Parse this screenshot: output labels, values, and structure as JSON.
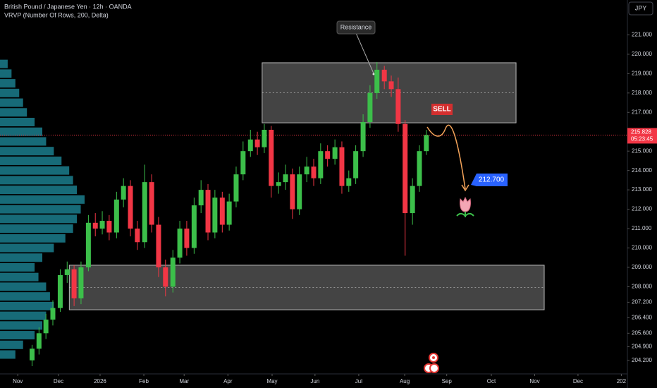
{
  "chart_data": {
    "type": "candlestick",
    "title": "British Pound / Japanese Yen · 12h · OANDA",
    "subtitle": "VRVP (Number Of Rows, 200, Delta)",
    "currency_button": "JPY",
    "up_color": "#3cbf4a",
    "down_color": "#f23645",
    "x": [
      0.33,
      0.49,
      0.65,
      0.81,
      0.98,
      1.14,
      1.3,
      1.46,
      1.63,
      1.79,
      1.95,
      2.11,
      2.28,
      2.44,
      2.6,
      2.76,
      2.93,
      3.09,
      3.25,
      3.41,
      3.58,
      3.74,
      3.9,
      4.07,
      4.23,
      4.39,
      4.55,
      4.72,
      4.88,
      5.04,
      5.2,
      5.37,
      5.53,
      5.69,
      5.85,
      6.02,
      6.18,
      6.34,
      6.5,
      6.67,
      6.83,
      6.99,
      7.15,
      7.32,
      7.48,
      7.64,
      7.8,
      7.97,
      8.13,
      8.29,
      8.46,
      8.62,
      8.78,
      8.94,
      9.11,
      9.27,
      9.43
    ],
    "open": [
      204.2,
      204.8,
      205.6,
      206.3,
      206.9,
      208.6,
      208.9,
      207.4,
      209.0,
      211.3,
      211.0,
      211.4,
      210.8,
      212.5,
      213.2,
      211.0,
      210.3,
      213.4,
      211.2,
      209.0,
      208.0,
      209.5,
      211.0,
      210.0,
      212.2,
      213.0,
      210.8,
      212.6,
      211.2,
      212.4,
      213.8,
      215.0,
      215.6,
      215.2,
      216.1,
      213.2,
      213.4,
      213.8,
      212.0,
      213.8,
      214.2,
      213.6,
      215.0,
      214.6,
      215.2,
      213.2,
      213.6,
      215.0,
      216.5,
      218.0,
      219.2,
      218.6,
      218.2,
      216.4,
      211.8,
      213.2,
      215.0
    ],
    "high": [
      205.0,
      205.9,
      206.6,
      207.3,
      208.9,
      209.3,
      209.1,
      209.3,
      211.7,
      211.8,
      211.9,
      211.7,
      212.9,
      213.6,
      213.5,
      211.4,
      214.3,
      213.8,
      211.6,
      209.4,
      209.9,
      211.4,
      211.4,
      212.6,
      213.5,
      213.3,
      213.0,
      212.9,
      212.8,
      214.2,
      215.5,
      216.1,
      216.0,
      216.4,
      216.3,
      213.9,
      214.3,
      214.1,
      214.2,
      214.7,
      214.6,
      215.4,
      215.3,
      215.6,
      215.5,
      214.0,
      215.3,
      216.9,
      218.4,
      219.6,
      219.4,
      218.9,
      218.8,
      216.6,
      213.6,
      215.3,
      216.1
    ],
    "low": [
      203.9,
      204.5,
      205.3,
      206.0,
      206.7,
      208.2,
      207.0,
      207.1,
      208.8,
      210.6,
      210.7,
      210.4,
      210.5,
      212.1,
      210.6,
      209.9,
      210.0,
      210.8,
      208.5,
      207.5,
      207.7,
      209.2,
      209.6,
      209.7,
      211.8,
      210.4,
      210.5,
      210.8,
      210.9,
      212.1,
      213.5,
      214.7,
      214.8,
      214.9,
      212.6,
      212.8,
      213.0,
      211.5,
      211.7,
      213.4,
      213.2,
      213.3,
      214.2,
      214.3,
      212.8,
      212.9,
      213.3,
      214.7,
      216.2,
      217.7,
      218.2,
      217.8,
      216.0,
      209.6,
      211.2,
      212.9,
      214.8
    ],
    "close": [
      204.8,
      205.6,
      206.3,
      206.9,
      208.6,
      208.9,
      207.4,
      209.0,
      211.3,
      211.0,
      211.4,
      210.8,
      212.5,
      213.2,
      211.0,
      210.3,
      213.4,
      211.2,
      209.0,
      208.0,
      209.5,
      211.0,
      210.0,
      212.2,
      213.0,
      210.8,
      212.6,
      211.2,
      212.4,
      213.8,
      215.0,
      215.6,
      215.2,
      216.1,
      213.2,
      213.4,
      213.8,
      212.0,
      213.8,
      214.2,
      213.6,
      215.0,
      214.6,
      215.2,
      213.2,
      213.6,
      215.0,
      216.5,
      218.0,
      219.2,
      218.6,
      218.2,
      216.4,
      211.8,
      213.2,
      215.0,
      215.828
    ],
    "xlim": [
      -0.41,
      14.07
    ],
    "xticks": [
      {
        "value": 0,
        "label": "Nov"
      },
      {
        "value": 0.94,
        "label": "Dec"
      },
      {
        "value": 1.9,
        "label": "2026"
      },
      {
        "value": 2.91,
        "label": "Feb"
      },
      {
        "value": 3.84,
        "label": "Mar"
      },
      {
        "value": 4.85,
        "label": "Apr"
      },
      {
        "value": 5.87,
        "label": "May"
      },
      {
        "value": 6.86,
        "label": "Jun"
      },
      {
        "value": 7.87,
        "label": "Jul"
      },
      {
        "value": 8.93,
        "label": "Aug"
      },
      {
        "value": 9.9,
        "label": "Sep"
      },
      {
        "value": 10.93,
        "label": "Oct"
      },
      {
        "value": 11.93,
        "label": "Nov"
      },
      {
        "value": 12.93,
        "label": "Dec"
      },
      {
        "value": 13.93,
        "label": "202"
      }
    ],
    "ylim": [
      203.5,
      222.8
    ],
    "yticks": [
      {
        "value": 221,
        "label": "221.000"
      },
      {
        "value": 220,
        "label": "220.000"
      },
      {
        "value": 219,
        "label": "219.000"
      },
      {
        "value": 218,
        "label": "218.000"
      },
      {
        "value": 217,
        "label": "217.000"
      },
      {
        "value": 216,
        "label": "216.000"
      },
      {
        "value": 215,
        "label": "215.000"
      },
      {
        "value": 214,
        "label": "214.000"
      },
      {
        "value": 213,
        "label": "213.000"
      },
      {
        "value": 212,
        "label": "212.000"
      },
      {
        "value": 211,
        "label": "211.000"
      },
      {
        "value": 210,
        "label": "210.000"
      },
      {
        "value": 209,
        "label": "209.000"
      },
      {
        "value": 208,
        "label": "208.000"
      },
      {
        "value": 207.2,
        "label": "207.200"
      },
      {
        "value": 206.4,
        "label": "206.400"
      },
      {
        "value": 205.6,
        "label": "205.600"
      },
      {
        "value": 204.9,
        "label": "204.900"
      },
      {
        "value": 204.2,
        "label": "204.200"
      }
    ],
    "current_price": {
      "value": 215.828,
      "label": "215.828"
    },
    "countdown": "05:23:45",
    "zones": [
      {
        "x": [
          5.64,
          11.5
        ],
        "y": [
          216.46,
          219.56
        ]
      },
      {
        "x": [
          1.19,
          12.15
        ],
        "y": [
          206.81,
          209.11
        ]
      }
    ],
    "volume_profile": {
      "color": "#1f8fa0",
      "prices": [
        204.5,
        205,
        205.5,
        206,
        206.5,
        207,
        207.5,
        208,
        208.5,
        209,
        209.5,
        210,
        210.5,
        211,
        211.5,
        212,
        212.5,
        213,
        213.5,
        214,
        214.5,
        215,
        215.5,
        216,
        216.5,
        217,
        217.5,
        218,
        218.5,
        219,
        219.5
      ],
      "values": [
        20,
        30,
        45,
        55,
        60,
        70,
        65,
        60,
        50,
        45,
        55,
        70,
        85,
        95,
        100,
        105,
        110,
        100,
        95,
        90,
        80,
        70,
        60,
        55,
        45,
        35,
        30,
        25,
        20,
        15,
        10
      ]
    },
    "annotations": {
      "resistance": "Resistance",
      "signal": "SELL",
      "target": "212.700"
    }
  }
}
